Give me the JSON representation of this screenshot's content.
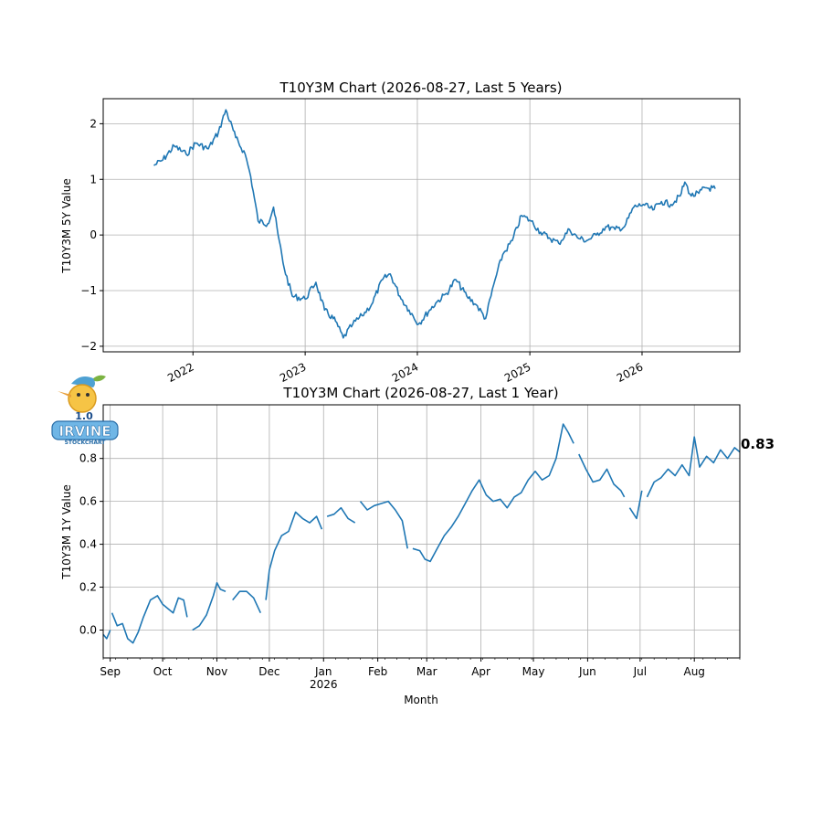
{
  "chart_data": [
    {
      "type": "line",
      "title": "T10Y3M Chart (2026-08-27, Last 5 Years)",
      "xlabel": "",
      "ylabel": "T10Y3M 5Y Value",
      "ylim": [
        -2.1,
        2.45
      ],
      "xlim": [
        "2021-03-15",
        "2026-11-15"
      ],
      "grid": true,
      "x_ticks": [
        "2022-01-01",
        "2023-01-01",
        "2024-01-01",
        "2025-01-01",
        "2026-01-01"
      ],
      "x_tick_labels": [
        "2022",
        "2023",
        "2024",
        "2025",
        "2026"
      ],
      "y_ticks": [
        -2,
        -1,
        0,
        1,
        2
      ],
      "y_tick_labels": [
        "−2",
        "−1",
        "0",
        "1",
        "2"
      ],
      "series": [
        {
          "color": "#1f77b4",
          "x": [
            "2021-08-27",
            "2021-09-25",
            "2021-11-01",
            "2021-12-10",
            "2022-01-10",
            "2022-02-20",
            "2022-03-25",
            "2022-04-18",
            "2022-05-20",
            "2022-06-20",
            "2022-07-08",
            "2022-08-01",
            "2022-09-01",
            "2022-09-20",
            "2022-10-05",
            "2022-10-25",
            "2022-11-20",
            "2023-01-01",
            "2023-02-05",
            "2023-03-05",
            "2023-04-10",
            "2023-05-05",
            "2023-06-05",
            "2023-07-05",
            "2023-08-05",
            "2023-09-10",
            "2023-10-05",
            "2023-11-05",
            "2023-12-05",
            "2024-01-05",
            "2024-02-10",
            "2024-03-05",
            "2024-04-05",
            "2024-05-05",
            "2024-06-10",
            "2024-07-10",
            "2024-08-10",
            "2024-09-10",
            "2024-10-05",
            "2024-11-05",
            "2024-12-05",
            "2025-01-05",
            "2025-02-05",
            "2025-03-05",
            "2025-04-05",
            "2025-05-10",
            "2025-06-05",
            "2025-07-05",
            "2025-08-05",
            "2025-09-05",
            "2025-10-05",
            "2025-11-05",
            "2025-12-05",
            "2026-01-05",
            "2026-02-05",
            "2026-03-05",
            "2026-04-05",
            "2026-05-05",
            "2026-05-20",
            "2026-06-10",
            "2026-07-05",
            "2026-07-25",
            "2026-08-27"
          ],
          "y": [
            1.25,
            1.35,
            1.6,
            1.45,
            1.65,
            1.55,
            1.85,
            2.25,
            1.75,
            1.45,
            1.05,
            0.25,
            0.2,
            0.5,
            0.0,
            -0.6,
            -1.1,
            -1.15,
            -0.85,
            -1.35,
            -1.55,
            -1.85,
            -1.6,
            -1.45,
            -1.25,
            -0.8,
            -0.7,
            -1.1,
            -1.35,
            -1.6,
            -1.35,
            -1.2,
            -1.05,
            -0.8,
            -1.1,
            -1.25,
            -1.5,
            -0.8,
            -0.35,
            -0.1,
            0.35,
            0.25,
            0.05,
            -0.05,
            -0.15,
            0.1,
            -0.05,
            -0.1,
            0.0,
            0.15,
            0.1,
            0.15,
            0.5,
            0.55,
            0.45,
            0.6,
            0.55,
            0.7,
            0.95,
            0.7,
            0.75,
            0.85,
            0.83
          ]
        }
      ]
    },
    {
      "type": "line",
      "title": "T10Y3M Chart (2026-08-27, Last 1 Year)",
      "xlabel": "Month",
      "ylabel": "T10Y3M 1Y Value",
      "ylim": [
        -0.13,
        1.05
      ],
      "xlim": [
        "2025-08-28",
        "2026-08-27"
      ],
      "grid": true,
      "x_ticks": [
        "2025-09-01",
        "2025-10-01",
        "2025-11-01",
        "2025-12-01",
        "2026-01-01",
        "2026-02-01",
        "2026-03-01",
        "2026-04-01",
        "2026-05-01",
        "2026-06-01",
        "2026-07-01",
        "2026-08-01"
      ],
      "x_tick_labels": [
        "Sep",
        "Oct",
        "Nov",
        "Dec",
        "Jan",
        "Feb",
        "Mar",
        "Apr",
        "May",
        "Jun",
        "Jul",
        "Aug"
      ],
      "x_tick_sublabel": {
        "index": 4,
        "text": "2026"
      },
      "y_ticks": [
        0.0,
        0.2,
        0.4,
        0.6,
        0.8
      ],
      "y_tick_labels": [
        "0.0",
        "0.2",
        "0.4",
        "0.6",
        "0.8"
      ],
      "last_value_label": "0.83",
      "series": [
        {
          "color": "#1f77b4",
          "segments": [
            {
              "x": [
                "2025-08-28",
                "2025-08-30",
                "2025-09-01"
              ],
              "y": [
                -0.02,
                -0.04,
                0.0
              ]
            },
            {
              "x": [
                "2025-09-02",
                "2025-09-05",
                "2025-09-08",
                "2025-09-11",
                "2025-09-14",
                "2025-09-17",
                "2025-09-20",
                "2025-09-24",
                "2025-09-28",
                "2025-10-01",
                "2025-10-04",
                "2025-10-07",
                "2025-10-10",
                "2025-10-13",
                "2025-10-15"
              ],
              "y": [
                0.08,
                0.02,
                0.03,
                -0.04,
                -0.06,
                -0.01,
                0.06,
                0.14,
                0.16,
                0.12,
                0.1,
                0.08,
                0.15,
                0.14,
                0.06
              ]
            },
            {
              "x": [
                "2025-10-18",
                "2025-10-22",
                "2025-10-26",
                "2025-10-30",
                "2025-11-01",
                "2025-11-03",
                "2025-11-06"
              ],
              "y": [
                0.0,
                0.02,
                0.07,
                0.16,
                0.22,
                0.19,
                0.18
              ]
            },
            {
              "x": [
                "2025-11-10",
                "2025-11-14",
                "2025-11-18",
                "2025-11-22",
                "2025-11-26"
              ],
              "y": [
                0.14,
                0.18,
                0.18,
                0.15,
                0.08
              ]
            },
            {
              "x": [
                "2025-11-29",
                "2025-12-01",
                "2025-12-04",
                "2025-12-08",
                "2025-12-12",
                "2025-12-16",
                "2025-12-20",
                "2025-12-24",
                "2025-12-28",
                "2025-12-31"
              ],
              "y": [
                0.14,
                0.28,
                0.37,
                0.44,
                0.46,
                0.55,
                0.52,
                0.5,
                0.53,
                0.47
              ]
            },
            {
              "x": [
                "2026-01-03",
                "2026-01-07",
                "2026-01-11",
                "2026-01-15",
                "2026-01-19"
              ],
              "y": [
                0.53,
                0.54,
                0.57,
                0.52,
                0.5
              ]
            },
            {
              "x": [
                "2026-01-22",
                "2026-01-26",
                "2026-01-30",
                "2026-02-03",
                "2026-02-07",
                "2026-02-11",
                "2026-02-15",
                "2026-02-18"
              ],
              "y": [
                0.6,
                0.56,
                0.58,
                0.59,
                0.6,
                0.56,
                0.51,
                0.38
              ]
            },
            {
              "x": [
                "2026-02-21",
                "2026-02-25",
                "2026-02-28",
                "2026-03-03",
                "2026-03-07",
                "2026-03-11",
                "2026-03-15",
                "2026-03-19",
                "2026-03-23",
                "2026-03-27",
                "2026-03-31",
                "2026-04-04",
                "2026-04-08",
                "2026-04-12",
                "2026-04-16",
                "2026-04-20",
                "2026-04-24",
                "2026-04-28",
                "2026-05-02",
                "2026-05-06",
                "2026-05-10",
                "2026-05-14",
                "2026-05-18",
                "2026-05-21",
                "2026-05-24"
              ],
              "y": [
                0.38,
                0.37,
                0.33,
                0.32,
                0.38,
                0.44,
                0.48,
                0.53,
                0.59,
                0.65,
                0.7,
                0.63,
                0.6,
                0.61,
                0.57,
                0.62,
                0.64,
                0.7,
                0.74,
                0.7,
                0.72,
                0.8,
                0.96,
                0.92,
                0.87
              ]
            },
            {
              "x": [
                "2026-05-27",
                "2026-05-31",
                "2026-06-04",
                "2026-06-08",
                "2026-06-12",
                "2026-06-16",
                "2026-06-20",
                "2026-06-22"
              ],
              "y": [
                0.82,
                0.75,
                0.69,
                0.7,
                0.75,
                0.68,
                0.65,
                0.62
              ]
            },
            {
              "x": [
                "2026-06-25",
                "2026-06-29",
                "2026-07-02"
              ],
              "y": [
                0.57,
                0.52,
                0.65
              ]
            },
            {
              "x": [
                "2026-07-05",
                "2026-07-09",
                "2026-07-13",
                "2026-07-17",
                "2026-07-21",
                "2026-07-25",
                "2026-07-29",
                "2026-08-01",
                "2026-08-04",
                "2026-08-08",
                "2026-08-12",
                "2026-08-16",
                "2026-08-20",
                "2026-08-24",
                "2026-08-27"
              ],
              "y": [
                0.62,
                0.69,
                0.71,
                0.75,
                0.72,
                0.77,
                0.72,
                0.9,
                0.76,
                0.81,
                0.78,
                0.84,
                0.8,
                0.85,
                0.83
              ]
            }
          ]
        }
      ]
    }
  ],
  "logo": {
    "version_text": "1.0",
    "wordmark": "IRVINE",
    "subtext": "STOCKCHART"
  }
}
